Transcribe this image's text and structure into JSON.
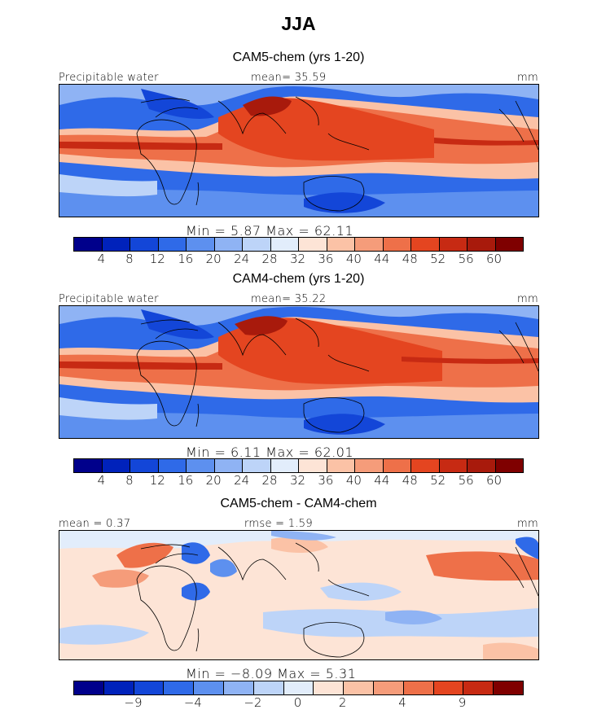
{
  "title": "JJA",
  "colors": {
    "abs_scale": [
      "#00008b",
      "#0022bb",
      "#1346d8",
      "#2f6ae8",
      "#5d90ef",
      "#8fb3f4",
      "#bdd4f8",
      "#e2edfb",
      "#fde4d6",
      "#fbc2a6",
      "#f59c7a",
      "#ee7049",
      "#e44520",
      "#c72a13",
      "#a81a0c",
      "#7f0000"
    ],
    "diff_scale": [
      "#00008b",
      "#0022bb",
      "#1346d8",
      "#2f6ae8",
      "#5d90ef",
      "#8fb3f4",
      "#bdd4f8",
      "#e2edfb",
      "#fde4d6",
      "#fbc2a6",
      "#f59c7a",
      "#ee7049",
      "#e44520",
      "#c72a13",
      "#7f0000"
    ],
    "land_line": "#000000"
  },
  "panels": [
    {
      "id": "cam5",
      "title": "CAM5-chem (yrs 1-20)",
      "left_label": "Precipitable water",
      "center_label": "mean=  35.59",
      "right_label": "mm",
      "minmax": "Min =    5.87  Max =   62.11",
      "ticks": [
        "4",
        "8",
        "12",
        "16",
        "20",
        "24",
        "28",
        "32",
        "36",
        "40",
        "44",
        "48",
        "52",
        "56",
        "60"
      ]
    },
    {
      "id": "cam4",
      "title": "CAM4-chem (yrs 1-20)",
      "left_label": "Precipitable water",
      "center_label": "mean=  35.22",
      "right_label": "mm",
      "minmax": "Min =    6.11  Max =   62.01",
      "ticks": [
        "4",
        "8",
        "12",
        "16",
        "20",
        "24",
        "28",
        "32",
        "36",
        "40",
        "44",
        "48",
        "52",
        "56",
        "60"
      ]
    },
    {
      "id": "diff",
      "title": "CAM5-chem - CAM4-chem",
      "left_label": "mean =   0.37",
      "center_label": "rmse =   1.59",
      "right_label": "mm",
      "minmax": "Min =  −8.09  Max =   5.31",
      "ticks": [
        "−9",
        "−4",
        "−2",
        "0",
        "2",
        "4",
        "9"
      ]
    }
  ]
}
